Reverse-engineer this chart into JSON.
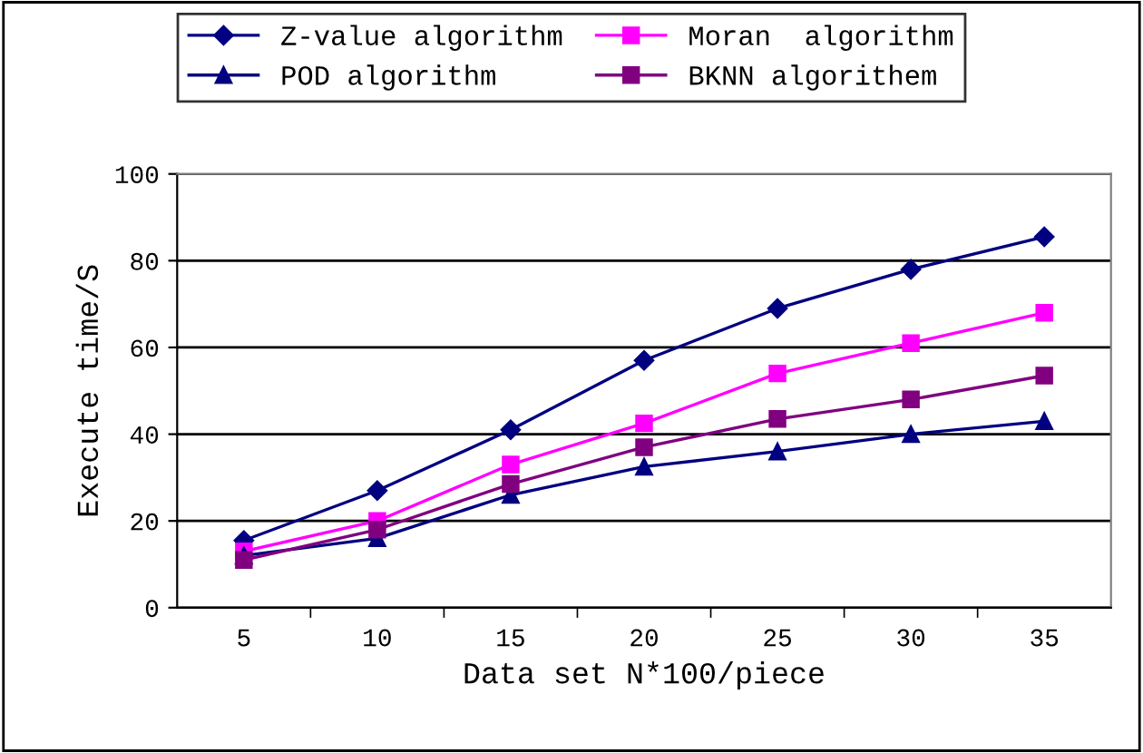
{
  "chart_data": {
    "type": "line",
    "xlabel": "Data set N*100/piece",
    "ylabel": "Execute time/S",
    "categories": [
      "5",
      "10",
      "15",
      "20",
      "25",
      "30",
      "35"
    ],
    "series": [
      {
        "name": "Z-value algorithm",
        "color": "#000080",
        "marker": "diamond",
        "values": [
          15.5,
          27,
          41,
          57,
          69,
          78,
          85.5
        ]
      },
      {
        "name": "Moran  algorithm",
        "color": "#ff00ff",
        "marker": "square",
        "values": [
          13,
          20,
          33,
          42.5,
          54,
          61,
          68
        ]
      },
      {
        "name": "POD algorithm",
        "color": "#000080",
        "marker": "triangle",
        "values": [
          12,
          16,
          26,
          32.5,
          36,
          40,
          43
        ]
      },
      {
        "name": "BKNN algorithem",
        "color": "#800080",
        "marker": "square",
        "values": [
          11,
          18,
          28.5,
          37,
          43.5,
          48,
          53.5
        ]
      }
    ],
    "ylim": [
      0,
      100
    ],
    "yticks": [
      0,
      20,
      40,
      60,
      80,
      100
    ],
    "grid": "y",
    "legend": "top",
    "line_style": "solid"
  }
}
